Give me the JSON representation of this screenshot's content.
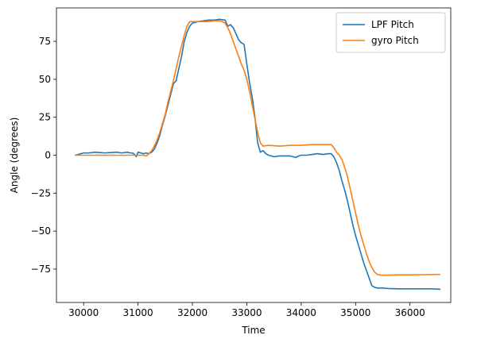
{
  "chart_data": {
    "type": "line",
    "xlabel": "Time",
    "ylabel": "Angle (degrees)",
    "xlim": [
      29500,
      36750
    ],
    "ylim": [
      -97,
      97
    ],
    "xticks": [
      30000,
      31000,
      32000,
      33000,
      34000,
      35000,
      36000
    ],
    "xtick_labels": [
      "30000",
      "31000",
      "32000",
      "33000",
      "34000",
      "35000",
      "36000"
    ],
    "yticks": [
      75,
      50,
      25,
      0,
      -25,
      -50,
      -75
    ],
    "ytick_labels": [
      "75",
      "50",
      "25",
      "0",
      "−25",
      "−50",
      "−75"
    ],
    "grid": false,
    "legend_position": "top-right",
    "series": [
      {
        "name": "LPF Pitch",
        "color": "#1f77b4",
        "x": [
          29850,
          30000,
          30100,
          30200,
          30400,
          30600,
          30700,
          30800,
          30850,
          30900,
          30950,
          30970,
          31000,
          31050,
          31100,
          31150,
          31200,
          31250,
          31300,
          31350,
          31400,
          31450,
          31500,
          31550,
          31600,
          31650,
          31700,
          31750,
          31800,
          31850,
          31900,
          31950,
          32000,
          32050,
          32100,
          32200,
          32300,
          32400,
          32500,
          32600,
          32650,
          32700,
          32750,
          32800,
          32850,
          32900,
          32950,
          33000,
          33050,
          33100,
          33150,
          33200,
          33250,
          33300,
          33350,
          33400,
          33500,
          33600,
          33700,
          33800,
          33900,
          33950,
          34000,
          34100,
          34200,
          34300,
          34400,
          34500,
          34550,
          34600,
          34650,
          34700,
          34750,
          34800,
          34850,
          34900,
          34950,
          35000,
          35050,
          35100,
          35150,
          35200,
          35250,
          35300,
          35350,
          35400,
          35450,
          35500,
          35600,
          35800,
          36000,
          36200,
          36400,
          36550
        ],
        "y": [
          0,
          1.5,
          1.5,
          2,
          1.5,
          2,
          1.5,
          2,
          1.5,
          1.5,
          0,
          -1,
          2,
          1.5,
          1,
          1.5,
          1,
          2,
          4,
          8,
          13,
          20,
          26,
          33,
          40,
          47,
          49,
          57,
          65,
          75,
          81,
          85,
          87,
          87.5,
          88,
          88.5,
          89,
          89,
          89.5,
          89,
          85,
          86,
          84,
          80,
          76,
          74,
          73,
          60,
          48,
          38,
          25,
          8,
          2,
          3,
          1,
          0,
          -1,
          -0.5,
          -0.5,
          -0.5,
          -1.5,
          -0.5,
          0,
          0,
          0.5,
          1,
          0.5,
          1,
          1,
          -1,
          -5,
          -10,
          -17,
          -23,
          -30,
          -38,
          -46,
          -53,
          -59,
          -65,
          -71,
          -76,
          -81,
          -86,
          -87,
          -87.5,
          -87.5,
          -87.5,
          -87.8,
          -88,
          -88,
          -88,
          -88,
          -88.3
        ]
      },
      {
        "name": "gyro Pitch",
        "color": "#ff7f0e",
        "x": [
          29850,
          30000,
          30500,
          31000,
          31100,
          31150,
          31200,
          31250,
          31300,
          31350,
          31400,
          31450,
          31500,
          31550,
          31600,
          31650,
          31700,
          31750,
          31800,
          31850,
          31900,
          31950,
          32000,
          32050,
          32100,
          32200,
          32300,
          32400,
          32500,
          32550,
          32600,
          32650,
          32700,
          32750,
          32800,
          32850,
          32900,
          32950,
          33000,
          33050,
          33100,
          33150,
          33200,
          33250,
          33300,
          33400,
          33600,
          33800,
          34000,
          34200,
          34400,
          34500,
          34550,
          34600,
          34650,
          34700,
          34750,
          34800,
          34850,
          34900,
          34950,
          35000,
          35050,
          35100,
          35150,
          35200,
          35250,
          35300,
          35350,
          35400,
          35450,
          35500,
          35600,
          35800,
          36000,
          36200,
          36400,
          36550
        ],
        "y": [
          0,
          0,
          0,
          0,
          0,
          -0.5,
          1,
          3,
          6,
          10,
          15,
          21,
          27,
          35,
          42,
          49,
          57,
          65,
          72,
          79,
          85,
          88,
          88,
          88,
          88,
          88,
          88,
          88.5,
          88.5,
          88,
          87,
          84,
          80,
          75,
          70,
          65,
          60,
          56,
          50,
          42,
          33,
          24,
          15,
          8,
          6,
          6.5,
          6,
          6.5,
          6.5,
          7,
          7,
          7,
          7,
          5,
          2,
          0,
          -3,
          -8,
          -14,
          -22,
          -30,
          -38,
          -46,
          -53,
          -59,
          -65,
          -70,
          -74,
          -77,
          -78.5,
          -79,
          -79,
          -79,
          -78.8,
          -78.8,
          -78.7,
          -78.6,
          -78.5
        ]
      }
    ]
  }
}
